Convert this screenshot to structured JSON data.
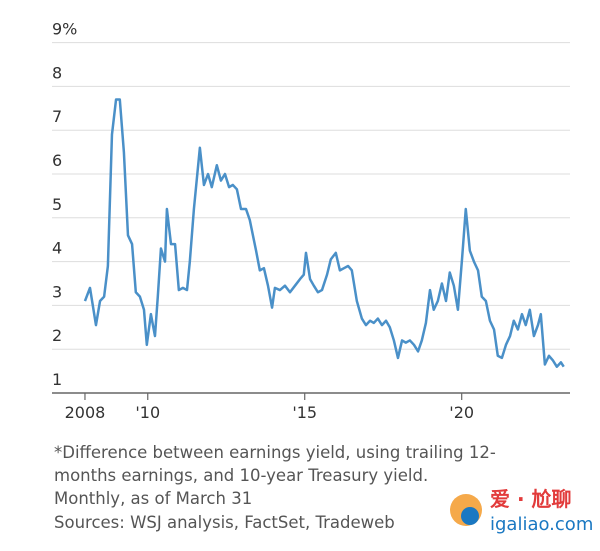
{
  "chart_data": {
    "type": "line",
    "x": [
      2008.0,
      2008.16,
      2008.35,
      2008.48,
      2008.61,
      2008.73,
      2008.86,
      2008.99,
      2009.11,
      2009.24,
      2009.37,
      2009.5,
      2009.62,
      2009.75,
      2009.88,
      2009.97,
      2010.1,
      2010.23,
      2010.32,
      2010.42,
      2010.55,
      2010.61,
      2010.74,
      2010.87,
      2010.99,
      2011.12,
      2011.25,
      2011.34,
      2011.47,
      2011.66,
      2011.79,
      2011.92,
      2012.04,
      2012.2,
      2012.33,
      2012.46,
      2012.59,
      2012.71,
      2012.84,
      2012.97,
      2013.13,
      2013.25,
      2013.45,
      2013.57,
      2013.7,
      2013.83,
      2013.96,
      2014.05,
      2014.21,
      2014.37,
      2014.53,
      2014.69,
      2014.85,
      2014.97,
      2015.04,
      2015.17,
      2015.29,
      2015.42,
      2015.55,
      2015.71,
      2015.83,
      2015.99,
      2016.12,
      2016.25,
      2016.38,
      2016.5,
      2016.66,
      2016.82,
      2016.95,
      2017.08,
      2017.2,
      2017.33,
      2017.46,
      2017.59,
      2017.71,
      2017.84,
      2017.97,
      2018.1,
      2018.22,
      2018.35,
      2018.48,
      2018.61,
      2018.73,
      2018.86,
      2018.99,
      2019.11,
      2019.24,
      2019.37,
      2019.5,
      2019.62,
      2019.75,
      2019.88,
      2020.01,
      2020.13,
      2020.26,
      2020.39,
      2020.52,
      2020.64,
      2020.77,
      2020.9,
      2021.03,
      2021.15,
      2021.28,
      2021.41,
      2021.54,
      2021.66,
      2021.79,
      2021.92,
      2022.04,
      2022.17,
      2022.3,
      2022.43,
      2022.52,
      2022.65,
      2022.78,
      2022.9,
      2023.03,
      2023.16,
      2023.25
    ],
    "series": [
      {
        "color": "#4a90c8",
        "values": [
          3.1,
          3.4,
          2.55,
          3.1,
          3.2,
          3.9,
          6.9,
          7.7,
          7.7,
          6.5,
          4.6,
          4.4,
          3.3,
          3.2,
          2.9,
          2.1,
          2.8,
          2.3,
          3.2,
          4.3,
          4.0,
          5.2,
          4.4,
          4.4,
          3.35,
          3.4,
          3.35,
          4.0,
          5.2,
          6.6,
          5.75,
          6.0,
          5.7,
          6.2,
          5.85,
          6.0,
          5.7,
          5.75,
          5.65,
          5.2,
          5.2,
          4.95,
          4.25,
          3.8,
          3.85,
          3.45,
          2.95,
          3.4,
          3.35,
          3.45,
          3.3,
          3.45,
          3.6,
          3.7,
          4.2,
          3.6,
          3.45,
          3.3,
          3.35,
          3.7,
          4.05,
          4.2,
          3.8,
          3.85,
          3.9,
          3.8,
          3.1,
          2.7,
          2.55,
          2.65,
          2.6,
          2.7,
          2.55,
          2.65,
          2.5,
          2.2,
          1.8,
          2.2,
          2.15,
          2.2,
          2.1,
          1.95,
          2.2,
          2.6,
          3.35,
          2.9,
          3.1,
          3.5,
          3.1,
          3.75,
          3.45,
          2.9,
          4.05,
          5.2,
          4.25,
          4.0,
          3.8,
          3.2,
          3.1,
          2.65,
          2.45,
          1.85,
          1.8,
          2.1,
          2.3,
          2.65,
          2.45,
          2.8,
          2.55,
          2.9,
          2.3,
          2.55,
          2.8,
          1.65,
          1.85,
          1.75,
          1.6,
          1.7,
          1.6
        ]
      }
    ],
    "xlim": [
      2006.95,
      2023.45
    ],
    "xticks": [
      2008,
      {
        "value": 2010,
        "label": "'10"
      },
      {
        "value": 2015,
        "label": "'15"
      },
      {
        "value": 2020,
        "label": "'20"
      }
    ],
    "ylim": [
      1,
      9
    ],
    "yticks": [
      1,
      2,
      3,
      4,
      5,
      6,
      7,
      8,
      {
        "value": 9,
        "label": "9%"
      }
    ],
    "grid": true,
    "notes": [
      "*Difference between earnings yield, using trailing 12-",
      "months earnings, and 10-year Treasury yield.",
      "Monthly, as of March 31",
      "Sources: WSJ analysis, FactSet, Tradeweb"
    ]
  },
  "watermark": {
    "brand": "爱 · 尬聊",
    "site": "igaliao.com"
  }
}
